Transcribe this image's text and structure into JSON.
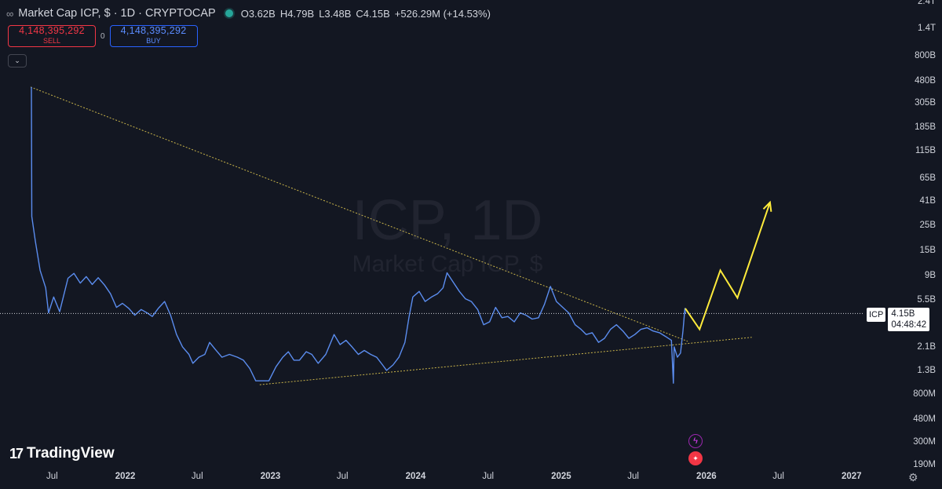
{
  "header": {
    "title": "Market Cap ICP, $ · 1D · CRYPTOCAP",
    "ohlc": [
      {
        "k": "O",
        "v": "3.62B"
      },
      {
        "k": "H",
        "v": "4.79B"
      },
      {
        "k": "L",
        "v": "3.48B"
      },
      {
        "k": "C",
        "v": "4.15B"
      },
      {
        "k": "",
        "v": "+526.29M (+14.53%)"
      }
    ]
  },
  "trade": {
    "sell_price": "4,148,395,292",
    "sell_label": "SELL",
    "spread": "0",
    "buy_price": "4,148,395,292",
    "buy_label": "BUY"
  },
  "watermark": {
    "line1": "ICP, 1D",
    "line2": "Market Cap ICP, $"
  },
  "price_tag": {
    "ticker": "ICP",
    "price": "4.15B",
    "countdown": "04:48:42"
  },
  "brand": {
    "name": "TradingView"
  },
  "colors": {
    "background": "#131722",
    "price_line": "#5b8def",
    "trendline": "#c9b44a",
    "projection": "#ffeb3b"
  },
  "chart_data": {
    "type": "line",
    "title": "",
    "y_scale": "log",
    "y_ticks": [
      "2.4T",
      "1.4T",
      "800B",
      "480B",
      "305B",
      "185B",
      "115B",
      "65B",
      "41B",
      "25B",
      "15B",
      "9B",
      "5.5B",
      "4.15B",
      "2.1B",
      "1.3B",
      "800M",
      "480M",
      "300M",
      "190M"
    ],
    "x_ticks": [
      "Jul",
      "2022",
      "Jul",
      "2023",
      "Jul",
      "2024",
      "Jul",
      "2025",
      "Jul",
      "2026",
      "Jul",
      "2027"
    ],
    "x_range": [
      "2021-05-10",
      "2027-01-31"
    ],
    "series": [
      {
        "values": [
          {
            "x": "2021-05-10",
            "y": 420000000000.0
          },
          {
            "x": "2021-05-11",
            "y": 30000000000.0
          },
          {
            "x": "2021-05-20",
            "y": 18000000000.0
          },
          {
            "x": "2021-06-01",
            "y": 10000000000.0
          },
          {
            "x": "2021-06-15",
            "y": 7000000000.0
          },
          {
            "x": "2021-06-22",
            "y": 4200000000.0
          },
          {
            "x": "2021-07-05",
            "y": 5800000000.0
          },
          {
            "x": "2021-07-20",
            "y": 4300000000.0
          },
          {
            "x": "2021-08-10",
            "y": 8500000000.0
          },
          {
            "x": "2021-08-25",
            "y": 9400000000.0
          },
          {
            "x": "2021-09-10",
            "y": 7700000000.0
          },
          {
            "x": "2021-09-25",
            "y": 8800000000.0
          },
          {
            "x": "2021-10-10",
            "y": 7500000000.0
          },
          {
            "x": "2021-10-25",
            "y": 8600000000.0
          },
          {
            "x": "2021-11-10",
            "y": 7400000000.0
          },
          {
            "x": "2021-11-25",
            "y": 6200000000.0
          },
          {
            "x": "2021-12-10",
            "y": 4700000000.0
          },
          {
            "x": "2021-12-25",
            "y": 5100000000.0
          },
          {
            "x": "2022-01-10",
            "y": 4600000000.0
          },
          {
            "x": "2022-01-25",
            "y": 4000000000.0
          },
          {
            "x": "2022-02-10",
            "y": 4500000000.0
          },
          {
            "x": "2022-02-25",
            "y": 4200000000.0
          },
          {
            "x": "2022-03-10",
            "y": 3900000000.0
          },
          {
            "x": "2022-03-25",
            "y": 4600000000.0
          },
          {
            "x": "2022-04-10",
            "y": 5300000000.0
          },
          {
            "x": "2022-04-25",
            "y": 4000000000.0
          },
          {
            "x": "2022-05-10",
            "y": 2700000000.0
          },
          {
            "x": "2022-05-25",
            "y": 2100000000.0
          },
          {
            "x": "2022-06-10",
            "y": 1800000000.0
          },
          {
            "x": "2022-06-20",
            "y": 1500000000.0
          },
          {
            "x": "2022-07-05",
            "y": 1700000000.0
          },
          {
            "x": "2022-07-20",
            "y": 1800000000.0
          },
          {
            "x": "2022-08-01",
            "y": 2300000000.0
          },
          {
            "x": "2022-08-15",
            "y": 2000000000.0
          },
          {
            "x": "2022-09-01",
            "y": 1700000000.0
          },
          {
            "x": "2022-09-20",
            "y": 1800000000.0
          },
          {
            "x": "2022-10-10",
            "y": 1700000000.0
          },
          {
            "x": "2022-10-25",
            "y": 1600000000.0
          },
          {
            "x": "2022-11-10",
            "y": 1350000000.0
          },
          {
            "x": "2022-11-25",
            "y": 1050000000.0
          },
          {
            "x": "2022-12-10",
            "y": 1050000000.0
          },
          {
            "x": "2022-12-28",
            "y": 1050000000.0
          },
          {
            "x": "2023-01-15",
            "y": 1400000000.0
          },
          {
            "x": "2023-02-01",
            "y": 1700000000.0
          },
          {
            "x": "2023-02-15",
            "y": 1900000000.0
          },
          {
            "x": "2023-03-01",
            "y": 1600000000.0
          },
          {
            "x": "2023-03-15",
            "y": 1600000000.0
          },
          {
            "x": "2023-04-01",
            "y": 1900000000.0
          },
          {
            "x": "2023-04-15",
            "y": 1800000000.0
          },
          {
            "x": "2023-05-01",
            "y": 1500000000.0
          },
          {
            "x": "2023-05-20",
            "y": 1800000000.0
          },
          {
            "x": "2023-06-10",
            "y": 2700000000.0
          },
          {
            "x": "2023-06-25",
            "y": 2200000000.0
          },
          {
            "x": "2023-07-10",
            "y": 2400000000.0
          },
          {
            "x": "2023-07-25",
            "y": 2100000000.0
          },
          {
            "x": "2023-08-10",
            "y": 1800000000.0
          },
          {
            "x": "2023-08-25",
            "y": 1950000000.0
          },
          {
            "x": "2023-09-10",
            "y": 1800000000.0
          },
          {
            "x": "2023-09-25",
            "y": 1700000000.0
          },
          {
            "x": "2023-10-10",
            "y": 1450000000.0
          },
          {
            "x": "2023-10-20",
            "y": 1300000000.0
          },
          {
            "x": "2023-11-05",
            "y": 1450000000.0
          },
          {
            "x": "2023-11-20",
            "y": 1700000000.0
          },
          {
            "x": "2023-12-05",
            "y": 2300000000.0
          },
          {
            "x": "2023-12-15",
            "y": 3800000000.0
          },
          {
            "x": "2023-12-25",
            "y": 5800000000.0
          },
          {
            "x": "2024-01-10",
            "y": 6500000000.0
          },
          {
            "x": "2024-01-25",
            "y": 5300000000.0
          },
          {
            "x": "2024-02-10",
            "y": 5800000000.0
          },
          {
            "x": "2024-02-25",
            "y": 6200000000.0
          },
          {
            "x": "2024-03-10",
            "y": 7000000000.0
          },
          {
            "x": "2024-03-20",
            "y": 9500000000.0
          },
          {
            "x": "2024-04-05",
            "y": 7800000000.0
          },
          {
            "x": "2024-04-20",
            "y": 6500000000.0
          },
          {
            "x": "2024-05-05",
            "y": 5600000000.0
          },
          {
            "x": "2024-05-20",
            "y": 5300000000.0
          },
          {
            "x": "2024-06-05",
            "y": 4500000000.0
          },
          {
            "x": "2024-06-20",
            "y": 3300000000.0
          },
          {
            "x": "2024-07-05",
            "y": 3500000000.0
          },
          {
            "x": "2024-07-20",
            "y": 4700000000.0
          },
          {
            "x": "2024-08-05",
            "y": 3800000000.0
          },
          {
            "x": "2024-08-20",
            "y": 3900000000.0
          },
          {
            "x": "2024-09-05",
            "y": 3500000000.0
          },
          {
            "x": "2024-09-20",
            "y": 4200000000.0
          },
          {
            "x": "2024-10-05",
            "y": 4000000000.0
          },
          {
            "x": "2024-10-20",
            "y": 3700000000.0
          },
          {
            "x": "2024-11-05",
            "y": 3800000000.0
          },
          {
            "x": "2024-11-20",
            "y": 5000000000.0
          },
          {
            "x": "2024-12-05",
            "y": 7200000000.0
          },
          {
            "x": "2024-12-20",
            "y": 5300000000.0
          },
          {
            "x": "2025-01-05",
            "y": 4700000000.0
          },
          {
            "x": "2025-01-20",
            "y": 4200000000.0
          },
          {
            "x": "2025-02-05",
            "y": 3300000000.0
          },
          {
            "x": "2025-02-20",
            "y": 3000000000.0
          },
          {
            "x": "2025-03-05",
            "y": 2700000000.0
          },
          {
            "x": "2025-03-20",
            "y": 2800000000.0
          },
          {
            "x": "2025-04-05",
            "y": 2300000000.0
          },
          {
            "x": "2025-04-20",
            "y": 2500000000.0
          },
          {
            "x": "2025-05-05",
            "y": 3000000000.0
          },
          {
            "x": "2025-05-20",
            "y": 3300000000.0
          },
          {
            "x": "2025-06-05",
            "y": 2900000000.0
          },
          {
            "x": "2025-06-20",
            "y": 2500000000.0
          },
          {
            "x": "2025-07-05",
            "y": 2700000000.0
          },
          {
            "x": "2025-07-20",
            "y": 3000000000.0
          },
          {
            "x": "2025-08-05",
            "y": 3100000000.0
          },
          {
            "x": "2025-08-20",
            "y": 2900000000.0
          },
          {
            "x": "2025-09-05",
            "y": 2800000000.0
          },
          {
            "x": "2025-09-20",
            "y": 2600000000.0
          },
          {
            "x": "2025-10-05",
            "y": 2400000000.0
          },
          {
            "x": "2025-10-10",
            "y": 1000000000.0
          },
          {
            "x": "2025-10-12",
            "y": 2100000000.0
          },
          {
            "x": "2025-10-20",
            "y": 1700000000.0
          },
          {
            "x": "2025-10-28",
            "y": 1850000000.0
          },
          {
            "x": "2025-11-03",
            "y": 2900000000.0
          },
          {
            "x": "2025-11-08",
            "y": 4600000000.0
          },
          {
            "x": "2025-11-09",
            "y": 4150000000.0
          }
        ]
      }
    ],
    "trendlines": [
      {
        "from": {
          "x": "2021-05-08",
          "y": 420000000000.0
        },
        "to": {
          "x": "2025-11-15",
          "y": 2350000000.0
        }
      },
      {
        "from": {
          "x": "2022-12-05",
          "y": 970000000.0
        },
        "to": {
          "x": "2026-04-25",
          "y": 2550000000.0
        }
      }
    ],
    "projection": [
      {
        "x": "2025-11-09",
        "y": 4600000000.0
      },
      {
        "x": "2025-12-15",
        "y": 3000000000.0
      },
      {
        "x": "2026-02-05",
        "y": 10000000000.0
      },
      {
        "x": "2026-03-20",
        "y": 5700000000.0
      },
      {
        "x": "2026-06-10",
        "y": 40000000000.0
      }
    ],
    "last_price": 4150000000.0
  }
}
